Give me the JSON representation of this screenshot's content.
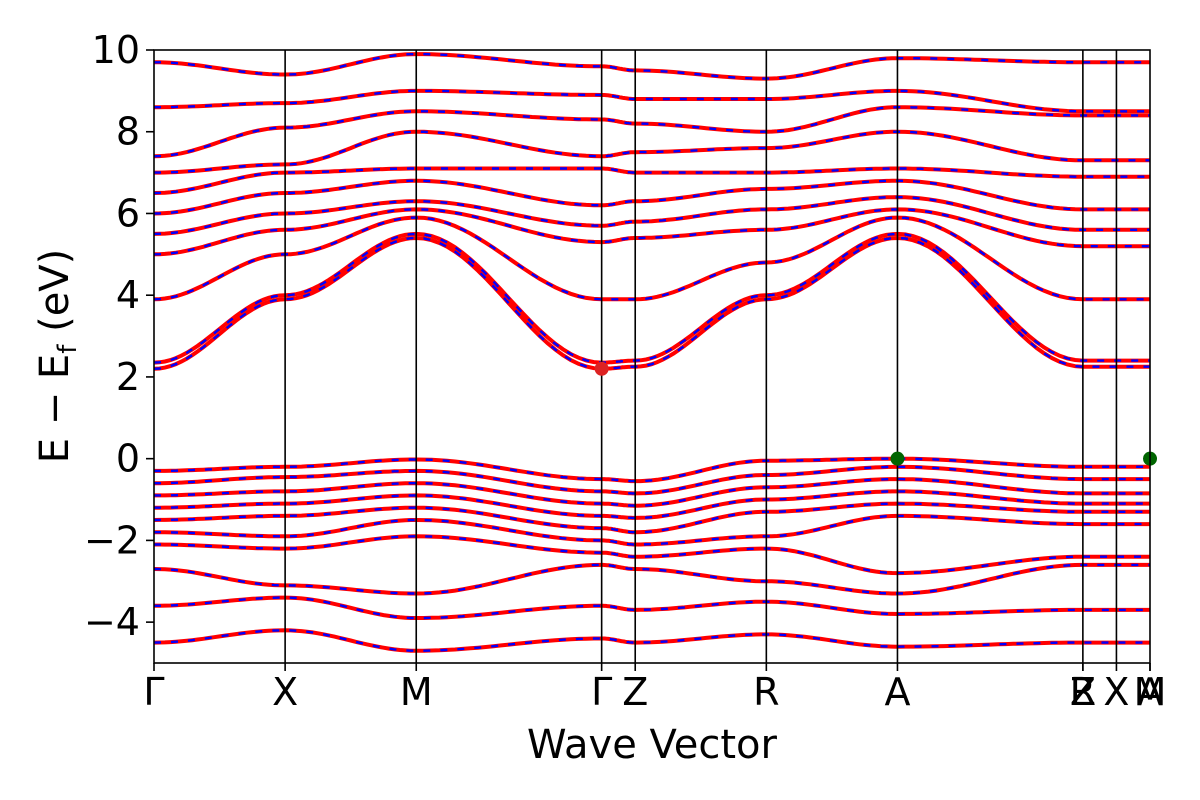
{
  "chart_data": {
    "type": "line",
    "title": "",
    "xlabel": "Wave Vector",
    "ylabel_main": "E − E",
    "ylabel_sub": "f",
    "ylabel_unit": " (eV)",
    "ylim": [
      -5,
      10
    ],
    "yticks": [
      -4,
      -2,
      0,
      2,
      4,
      6,
      8,
      10
    ],
    "ytick_labels": [
      "−4",
      "−2",
      "0",
      "2",
      "4",
      "6",
      "8",
      "10"
    ],
    "grid": false,
    "legend": "none",
    "kpath": [
      {
        "label": "Γ",
        "x": 0.0
      },
      {
        "label": "X",
        "x": 1.0
      },
      {
        "label": "M",
        "x": 2.0
      },
      {
        "label": "Γ",
        "x": 3.414
      },
      {
        "label": "Z",
        "x": 3.67
      },
      {
        "label": "R",
        "x": 4.67
      },
      {
        "label": "A",
        "x": 5.67
      },
      {
        "label": "Z",
        "x": 7.084
      },
      {
        "label": "R",
        "x": 7.084
      },
      {
        "label": "X",
        "x": 7.34
      },
      {
        "label": "M",
        "x": 7.596
      },
      {
        "label": "A",
        "x": 7.596
      }
    ],
    "band_extremum_markers": [
      {
        "name": "VBM",
        "x": 5.67,
        "energy": 0.0,
        "color": "#006400"
      },
      {
        "name": "VBM",
        "x": 7.596,
        "energy": 0.0,
        "color": "#006400"
      },
      {
        "name": "CBM",
        "x": 3.414,
        "energy": 2.2,
        "color": "#dd2222"
      }
    ],
    "colors": {
      "spin_up": "#ff0000",
      "spin_down": "#0000ff",
      "marker_vbm": "#006400",
      "marker_cbm": "#dd2222"
    },
    "series": [
      {
        "x": [
          0,
          1,
          2,
          3.414,
          3.67,
          4.67,
          5.67,
          7.084
        ],
        "values": [
          -0.3,
          -0.2,
          -0.02,
          -0.5,
          -0.55,
          -0.05,
          0.0,
          -0.2
        ]
      },
      {
        "x": [
          0,
          1,
          2,
          3.414,
          3.67,
          4.67,
          5.67,
          7.084
        ],
        "values": [
          -0.6,
          -0.45,
          -0.3,
          -0.8,
          -0.85,
          -0.4,
          -0.2,
          -0.5
        ]
      },
      {
        "x": [
          0,
          1,
          2,
          3.414,
          3.67,
          4.67,
          5.67,
          7.084
        ],
        "values": [
          -0.9,
          -0.8,
          -0.6,
          -1.1,
          -1.15,
          -0.7,
          -0.5,
          -0.85
        ]
      },
      {
        "x": [
          0,
          1,
          2,
          3.414,
          3.67,
          4.67,
          5.67,
          7.084
        ],
        "values": [
          -1.2,
          -1.1,
          -0.9,
          -1.4,
          -1.45,
          -1.0,
          -0.8,
          -1.1
        ]
      },
      {
        "x": [
          0,
          1,
          2,
          3.414,
          3.67,
          4.67,
          5.67,
          7.084
        ],
        "values": [
          -1.5,
          -1.4,
          -1.2,
          -1.7,
          -1.8,
          -1.3,
          -1.1,
          -1.3
        ]
      },
      {
        "x": [
          0,
          1,
          2,
          3.414,
          3.67,
          4.67,
          5.67,
          7.084
        ],
        "values": [
          -1.8,
          -1.9,
          -1.5,
          -2.0,
          -2.1,
          -1.9,
          -1.4,
          -1.6
        ]
      },
      {
        "x": [
          0,
          1,
          2,
          3.414,
          3.67,
          4.67,
          5.67,
          7.084
        ],
        "values": [
          -2.1,
          -2.2,
          -1.9,
          -2.3,
          -2.4,
          -2.2,
          -2.8,
          -2.4
        ]
      },
      {
        "x": [
          0,
          1,
          2,
          3.414,
          3.67,
          4.67,
          5.67,
          7.084
        ],
        "values": [
          -2.7,
          -3.1,
          -3.3,
          -2.6,
          -2.7,
          -3.0,
          -3.3,
          -2.6
        ]
      },
      {
        "x": [
          0,
          1,
          2,
          3.414,
          3.67,
          4.67,
          5.67,
          7.084
        ],
        "values": [
          -3.6,
          -3.4,
          -3.9,
          -3.6,
          -3.7,
          -3.5,
          -3.8,
          -3.7
        ]
      },
      {
        "x": [
          0,
          1,
          2,
          3.414,
          3.67,
          4.67,
          5.67,
          7.084
        ],
        "values": [
          -4.5,
          -4.2,
          -4.7,
          -4.4,
          -4.5,
          -4.3,
          -4.6,
          -4.5
        ]
      },
      {
        "x": [
          0,
          1,
          2,
          3.414,
          3.67,
          4.67,
          5.67,
          7.084
        ],
        "values": [
          2.2,
          3.9,
          5.4,
          2.2,
          2.25,
          3.9,
          5.4,
          2.25
        ]
      },
      {
        "x": [
          0,
          1,
          2,
          3.414,
          3.67,
          4.67,
          5.67,
          7.084
        ],
        "values": [
          2.35,
          4.0,
          5.5,
          2.35,
          2.4,
          4.0,
          5.5,
          2.4
        ]
      },
      {
        "x": [
          0,
          1,
          2,
          3.414,
          3.67,
          4.67,
          5.67,
          7.084
        ],
        "values": [
          3.9,
          5.0,
          5.9,
          3.9,
          3.9,
          4.8,
          5.9,
          3.9
        ]
      },
      {
        "x": [
          0,
          1,
          2,
          3.414,
          3.67,
          4.67,
          5.67,
          7.084
        ],
        "values": [
          5.0,
          5.6,
          6.1,
          5.3,
          5.4,
          5.6,
          6.1,
          5.2
        ]
      },
      {
        "x": [
          0,
          1,
          2,
          3.414,
          3.67,
          4.67,
          5.67,
          7.084
        ],
        "values": [
          5.5,
          6.0,
          6.3,
          5.7,
          5.8,
          6.1,
          6.4,
          5.6
        ]
      },
      {
        "x": [
          0,
          1,
          2,
          3.414,
          3.67,
          4.67,
          5.67,
          7.084
        ],
        "values": [
          6.0,
          6.5,
          6.8,
          6.2,
          6.3,
          6.6,
          6.8,
          6.1
        ]
      },
      {
        "x": [
          0,
          1,
          2,
          3.414,
          3.67,
          4.67,
          5.67,
          7.084
        ],
        "values": [
          6.5,
          7.0,
          7.1,
          7.1,
          7.0,
          7.0,
          7.1,
          6.9
        ]
      },
      {
        "x": [
          0,
          1,
          2,
          3.414,
          3.67,
          4.67,
          5.67,
          7.084
        ],
        "values": [
          7.0,
          7.2,
          8.0,
          7.4,
          7.5,
          7.6,
          8.0,
          7.3
        ]
      },
      {
        "x": [
          0,
          1,
          2,
          3.414,
          3.67,
          4.67,
          5.67,
          7.084
        ],
        "values": [
          7.4,
          8.1,
          8.5,
          8.3,
          8.2,
          8.0,
          8.6,
          8.4
        ]
      },
      {
        "x": [
          0,
          1,
          2,
          3.414,
          3.67,
          4.67,
          5.67,
          7.084
        ],
        "values": [
          8.6,
          8.7,
          9.0,
          8.9,
          8.8,
          8.8,
          9.0,
          8.5
        ]
      },
      {
        "x": [
          0,
          1,
          2,
          3.414,
          3.67,
          4.67,
          5.67,
          7.084
        ],
        "values": [
          9.7,
          9.4,
          9.9,
          9.6,
          9.5,
          9.3,
          9.8,
          9.7
        ]
      }
    ]
  }
}
